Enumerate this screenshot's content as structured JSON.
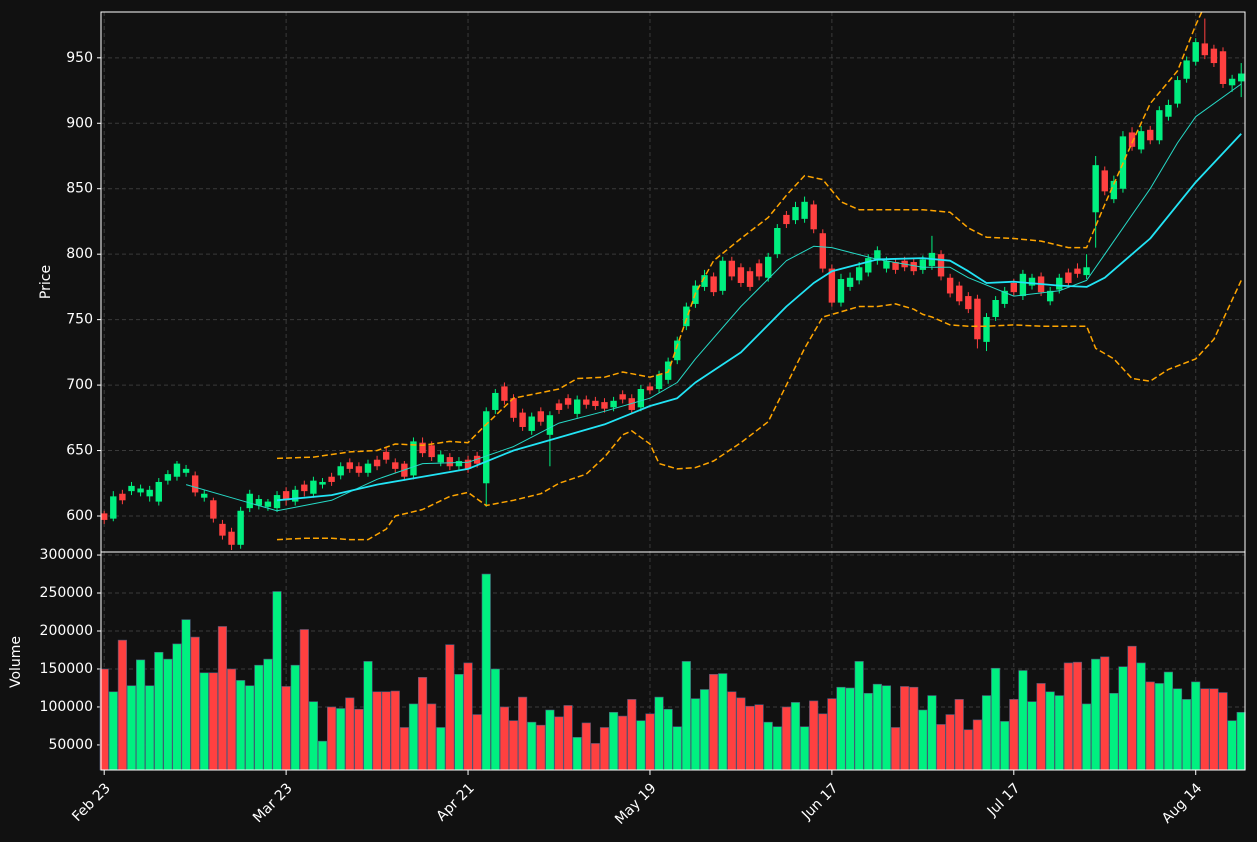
{
  "chart_data": [
    {
      "type": "candlestick",
      "ylabel": "Price",
      "up_color": "#00f080",
      "down_color": "#ff4040",
      "ylim": [
        572.5,
        985
      ],
      "yticks": [
        600,
        650,
        700,
        750,
        800,
        850,
        900,
        950
      ],
      "grid": true,
      "open": [
        602,
        598,
        617,
        619,
        618,
        615,
        611,
        627,
        630,
        633,
        631,
        614,
        612,
        594,
        588,
        578,
        606,
        608,
        607,
        606,
        619,
        611,
        624,
        617,
        624,
        630,
        631,
        641,
        638,
        633,
        643,
        649,
        641,
        640,
        631,
        656,
        654,
        641,
        645,
        638,
        643,
        646,
        625,
        681,
        699,
        690,
        679,
        665,
        680,
        662,
        686,
        690,
        678,
        689,
        688,
        687,
        683,
        693,
        690,
        683,
        699,
        697,
        704,
        719,
        745,
        762,
        775,
        783,
        772,
        795,
        790,
        787,
        793,
        782,
        800,
        830,
        826,
        827,
        838,
        816,
        789,
        763,
        775,
        780,
        786,
        795,
        789,
        794,
        795,
        794,
        788,
        791,
        800,
        782,
        776,
        768,
        766,
        733,
        752,
        762,
        778,
        768,
        776,
        783,
        764,
        773,
        786,
        789,
        784,
        832,
        864,
        842,
        850,
        893,
        880,
        895,
        887,
        905,
        915,
        934,
        947,
        961,
        957,
        955,
        929,
        932
      ],
      "high": [
        604,
        619,
        620,
        626,
        624,
        623,
        629,
        635,
        642,
        639,
        634,
        620,
        614,
        597,
        591,
        607,
        620,
        616,
        613,
        619,
        622,
        623,
        627,
        630,
        629,
        633,
        641,
        644,
        641,
        643,
        646,
        652,
        644,
        642,
        660,
        660,
        657,
        650,
        648,
        645,
        646,
        649,
        683,
        697,
        702,
        693,
        682,
        679,
        683,
        680,
        689,
        693,
        692,
        692,
        691,
        690,
        691,
        696,
        693,
        700,
        702,
        711,
        721,
        737,
        763,
        780,
        788,
        786,
        798,
        798,
        793,
        790,
        796,
        801,
        823,
        833,
        840,
        844,
        841,
        819,
        792,
        785,
        786,
        794,
        800,
        806,
        798,
        797,
        798,
        797,
        799,
        814,
        803,
        785,
        779,
        771,
        769,
        755,
        768,
        775,
        781,
        788,
        785,
        786,
        775,
        785,
        789,
        793,
        800,
        875,
        867,
        860,
        894,
        897,
        898,
        898,
        913,
        918,
        936,
        951,
        965,
        980,
        960,
        958,
        937,
        946
      ],
      "low": [
        594,
        596,
        609,
        616,
        615,
        611,
        608,
        624,
        627,
        630,
        615,
        611,
        595,
        582,
        574,
        575,
        603,
        605,
        604,
        603,
        608,
        608,
        615,
        614,
        621,
        623,
        628,
        633,
        630,
        630,
        635,
        640,
        633,
        627,
        628,
        645,
        642,
        638,
        635,
        635,
        633,
        637,
        607,
        678,
        685,
        672,
        665,
        662,
        669,
        638,
        678,
        682,
        675,
        682,
        681,
        679,
        680,
        686,
        678,
        680,
        693,
        694,
        701,
        716,
        742,
        759,
        772,
        768,
        769,
        780,
        775,
        772,
        780,
        779,
        797,
        820,
        823,
        824,
        816,
        786,
        760,
        760,
        772,
        777,
        783,
        792,
        786,
        785,
        787,
        784,
        785,
        788,
        780,
        767,
        761,
        755,
        728,
        726,
        749,
        759,
        768,
        765,
        773,
        768,
        761,
        770,
        775,
        782,
        781,
        805,
        845,
        839,
        847,
        879,
        877,
        884,
        884,
        902,
        912,
        931,
        944,
        949,
        943,
        927,
        924,
        920
      ],
      "close": [
        597,
        615,
        612,
        623,
        621,
        620,
        626,
        632,
        640,
        636,
        618,
        617,
        598,
        585,
        578,
        604,
        617,
        613,
        611,
        616,
        612,
        620,
        619,
        627,
        626,
        626,
        638,
        636,
        633,
        640,
        638,
        643,
        636,
        630,
        657,
        648,
        645,
        647,
        638,
        642,
        636,
        640,
        680,
        694,
        688,
        675,
        668,
        676,
        672,
        677,
        681,
        685,
        689,
        685,
        684,
        682,
        688,
        689,
        681,
        697,
        696,
        708,
        718,
        734,
        760,
        776,
        784,
        771,
        795,
        783,
        778,
        775,
        783,
        798,
        820,
        823,
        836,
        840,
        819,
        789,
        763,
        781,
        782,
        790,
        797,
        803,
        795,
        788,
        790,
        787,
        796,
        801,
        783,
        770,
        764,
        758,
        735,
        752,
        765,
        772,
        771,
        785,
        782,
        771,
        772,
        782,
        778,
        785,
        790,
        868,
        848,
        856,
        890,
        882,
        894,
        887,
        910,
        914,
        933,
        948,
        962,
        952,
        946,
        930,
        934,
        938
      ],
      "overlays": [
        {
          "color": "#26d9c6",
          "line_style": "solid",
          "x": [
            9,
            14,
            19,
            25,
            30,
            35,
            40,
            45,
            50,
            55,
            60,
            63,
            65,
            70,
            75,
            78,
            80,
            85,
            90,
            93,
            95,
            100,
            105,
            108,
            110,
            115,
            118,
            120,
            125
          ],
          "values": [
            624,
            614,
            604,
            612,
            628,
            640,
            641,
            653,
            671,
            680,
            690,
            702,
            720,
            760,
            795,
            806,
            805,
            796,
            790,
            790,
            782,
            768,
            772,
            780,
            800,
            850,
            885,
            905,
            930
          ]
        },
        {
          "color": "#22e4f5",
          "line_style": "solid",
          "x": [
            19,
            25,
            30,
            35,
            40,
            45,
            50,
            55,
            60,
            63,
            65,
            70,
            75,
            78,
            80,
            85,
            90,
            93,
            95,
            97,
            100,
            105,
            108,
            110,
            115,
            120,
            125
          ],
          "values": [
            612,
            616,
            624,
            630,
            636,
            650,
            660,
            670,
            684,
            690,
            702,
            725,
            760,
            778,
            787,
            796,
            797,
            795,
            787,
            778,
            779,
            776,
            775,
            782,
            812,
            855,
            892
          ]
        },
        {
          "color": "#ffa500",
          "line_style": "dashed",
          "x": [
            19,
            23,
            27,
            30,
            32,
            35,
            38,
            40,
            42,
            45,
            50,
            52,
            55,
            57,
            60,
            62,
            63,
            65,
            67,
            70,
            73,
            75,
            77,
            79,
            81,
            83,
            85,
            90,
            93,
            95,
            97,
            100,
            103,
            106,
            108,
            110,
            113,
            115,
            118,
            120,
            121
          ],
          "values": [
            644,
            645,
            649,
            650,
            655,
            654,
            657,
            656,
            670,
            690,
            697,
            705,
            706,
            710,
            706,
            710,
            730,
            770,
            795,
            812,
            828,
            845,
            860,
            857,
            840,
            834,
            834,
            834,
            832,
            820,
            813,
            812,
            810,
            805,
            805,
            838,
            885,
            915,
            940,
            975,
            990
          ]
        },
        {
          "color": "#ffa500",
          "line_style": "dashed",
          "x": [
            19,
            22,
            25,
            27,
            29,
            31,
            32,
            35,
            38,
            40,
            42,
            45,
            48,
            50,
            53,
            55,
            57,
            58,
            60,
            61,
            63,
            65,
            67,
            70,
            73,
            75,
            77,
            79,
            81,
            83,
            85,
            87,
            89,
            90,
            91,
            93,
            95,
            97,
            100,
            103,
            106,
            108,
            109,
            111,
            113,
            115,
            117,
            120,
            122,
            125
          ],
          "values": [
            582,
            583,
            583,
            582,
            582,
            590,
            600,
            605,
            615,
            618,
            608,
            612,
            617,
            625,
            632,
            645,
            662,
            665,
            655,
            640,
            636,
            637,
            642,
            656,
            672,
            700,
            728,
            752,
            756,
            760,
            760,
            762,
            758,
            754,
            752,
            746,
            745,
            745,
            746,
            745,
            745,
            745,
            728,
            720,
            705,
            703,
            712,
            720,
            735,
            780
          ]
        }
      ]
    },
    {
      "type": "bar",
      "ylabel": "Volume",
      "categories": [
        "Feb 23",
        null,
        null,
        null,
        null,
        null,
        null,
        null,
        null,
        null,
        null,
        null,
        null,
        null,
        null,
        null,
        null,
        null,
        null,
        null,
        "Mar 23",
        null,
        null,
        null,
        null,
        null,
        null,
        null,
        null,
        null,
        null,
        null,
        null,
        null,
        null,
        null,
        null,
        null,
        null,
        null,
        "Apr 21",
        null,
        null,
        null,
        null,
        null,
        null,
        null,
        null,
        null,
        null,
        null,
        null,
        null,
        null,
        null,
        null,
        null,
        null,
        null,
        "May 19",
        null,
        null,
        null,
        null,
        null,
        null,
        null,
        null,
        null,
        null,
        null,
        null,
        null,
        null,
        null,
        null,
        null,
        null,
        null,
        "Jun 17",
        null,
        null,
        null,
        null,
        null,
        null,
        null,
        null,
        null,
        null,
        null,
        null,
        null,
        null,
        null,
        null,
        null,
        null,
        null,
        "Jul 17",
        null,
        null,
        null,
        null,
        null,
        null,
        null,
        null,
        null,
        null,
        null,
        null,
        null,
        null,
        null,
        null,
        null,
        null,
        null,
        "Aug 14",
        null,
        null,
        null,
        null,
        null
      ],
      "values": [
        150000,
        120000,
        188000,
        128000,
        162000,
        128000,
        172000,
        163000,
        183000,
        215000,
        192000,
        145000,
        145000,
        206000,
        150000,
        135000,
        128000,
        155000,
        163000,
        252000,
        127000,
        155000,
        202000,
        107000,
        55000,
        100000,
        98000,
        112000,
        97000,
        160000,
        120000,
        120000,
        121000,
        73000,
        104000,
        139000,
        104000,
        73000,
        182000,
        143000,
        158000,
        90000,
        275000,
        150000,
        100000,
        82000,
        113000,
        80000,
        76000,
        96000,
        87000,
        102000,
        60000,
        79000,
        52000,
        73000,
        93000,
        88000,
        110000,
        82000,
        91000,
        113000,
        97000,
        74000,
        160000,
        111000,
        123000,
        143000,
        144000,
        120000,
        112000,
        101000,
        103000,
        80000,
        74000,
        100000,
        106000,
        74000,
        108000,
        91000,
        111000,
        126000,
        125000,
        160000,
        118000,
        130000,
        128000,
        73000,
        127000,
        126000,
        96000,
        115000,
        77000,
        90000,
        110000,
        70000,
        83000,
        115000,
        151000,
        81000,
        110000,
        148000,
        107000,
        131000,
        120000,
        115000,
        158000,
        159000,
        104000,
        163000,
        166000,
        118000,
        153000,
        180000,
        158000,
        133000,
        131000,
        146000,
        124000,
        110000,
        133000,
        124000,
        124000,
        119000,
        82000,
        93000
      ],
      "ylim": [
        17000,
        304000
      ],
      "yticks": [
        50000,
        100000,
        150000,
        200000,
        250000,
        300000
      ],
      "grid": true
    }
  ]
}
